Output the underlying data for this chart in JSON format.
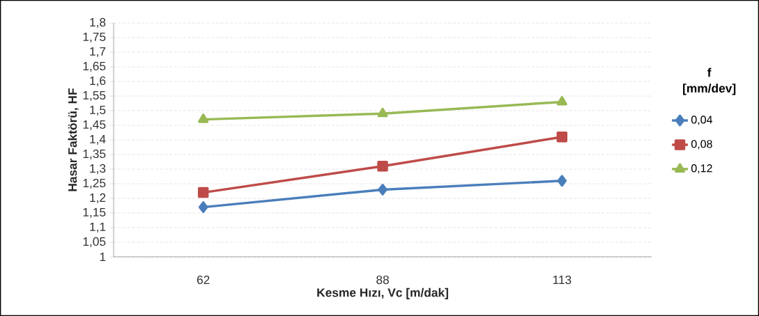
{
  "chart_data": {
    "type": "line",
    "xlabel": "Kesme Hızı, Vc [m/dak]",
    "ylabel": "Hasar Faktörü, HF",
    "legend_title": "f [mm/dev]",
    "categories": [
      "62",
      "88",
      "113"
    ],
    "series": [
      {
        "name": "0,04",
        "color": "#4a7ebb",
        "marker": "diamond",
        "values": [
          1.17,
          1.23,
          1.26
        ]
      },
      {
        "name": "0,08",
        "color": "#be4b48",
        "marker": "square",
        "values": [
          1.22,
          1.31,
          1.41
        ]
      },
      {
        "name": "0,12",
        "color": "#98b954",
        "marker": "triangle",
        "values": [
          1.47,
          1.49,
          1.53
        ]
      }
    ],
    "ylim": [
      1,
      1.8
    ],
    "yticks": [
      1,
      {
        "value": 1.05,
        "label": "1,05"
      },
      {
        "value": 1.1,
        "label": "1,1"
      },
      {
        "value": 1.15,
        "label": "1,15"
      },
      {
        "value": 1.2,
        "label": "1,2"
      },
      {
        "value": 1.25,
        "label": "1,25"
      },
      {
        "value": 1.3,
        "label": "1,3"
      },
      {
        "value": 1.35,
        "label": "1,35"
      },
      {
        "value": 1.4,
        "label": "1,4"
      },
      {
        "value": 1.45,
        "label": "1,45"
      },
      {
        "value": 1.5,
        "label": "1,5"
      },
      {
        "value": 1.55,
        "label": "1,55"
      },
      {
        "value": 1.6,
        "label": "1,6"
      },
      {
        "value": 1.65,
        "label": "1,65"
      },
      {
        "value": 1.7,
        "label": "1,7"
      },
      {
        "value": 1.75,
        "label": "1,75"
      },
      {
        "value": 1.8,
        "label": "1,8"
      }
    ],
    "grid": "y",
    "legend": "right",
    "line_style": "solid"
  }
}
